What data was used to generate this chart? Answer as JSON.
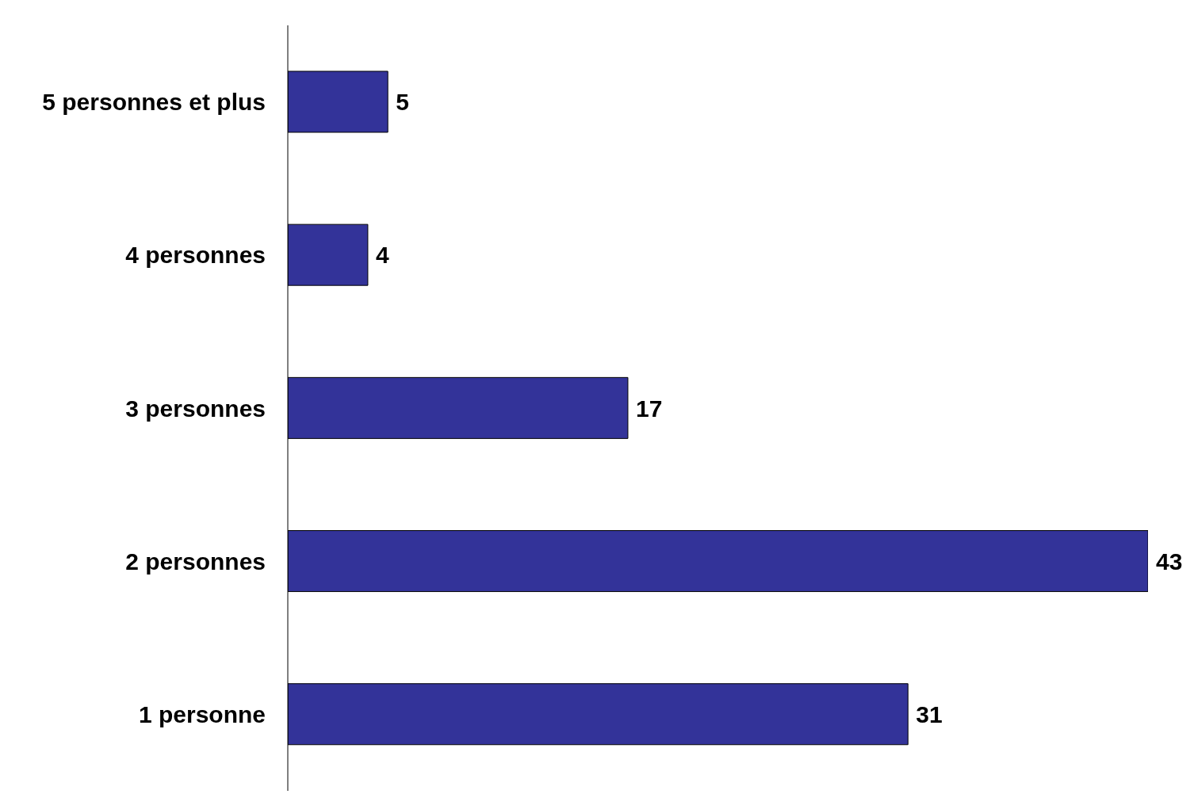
{
  "chart_data": {
    "type": "bar",
    "orientation": "horizontal",
    "categories": [
      "5 personnes et plus",
      "4 personnes",
      "3 personnes",
      "2 personnes",
      "1 personne"
    ],
    "values": [
      5,
      4,
      17,
      43,
      31
    ],
    "color": "#333399",
    "data_labels": true,
    "grid": false,
    "legend": false
  }
}
